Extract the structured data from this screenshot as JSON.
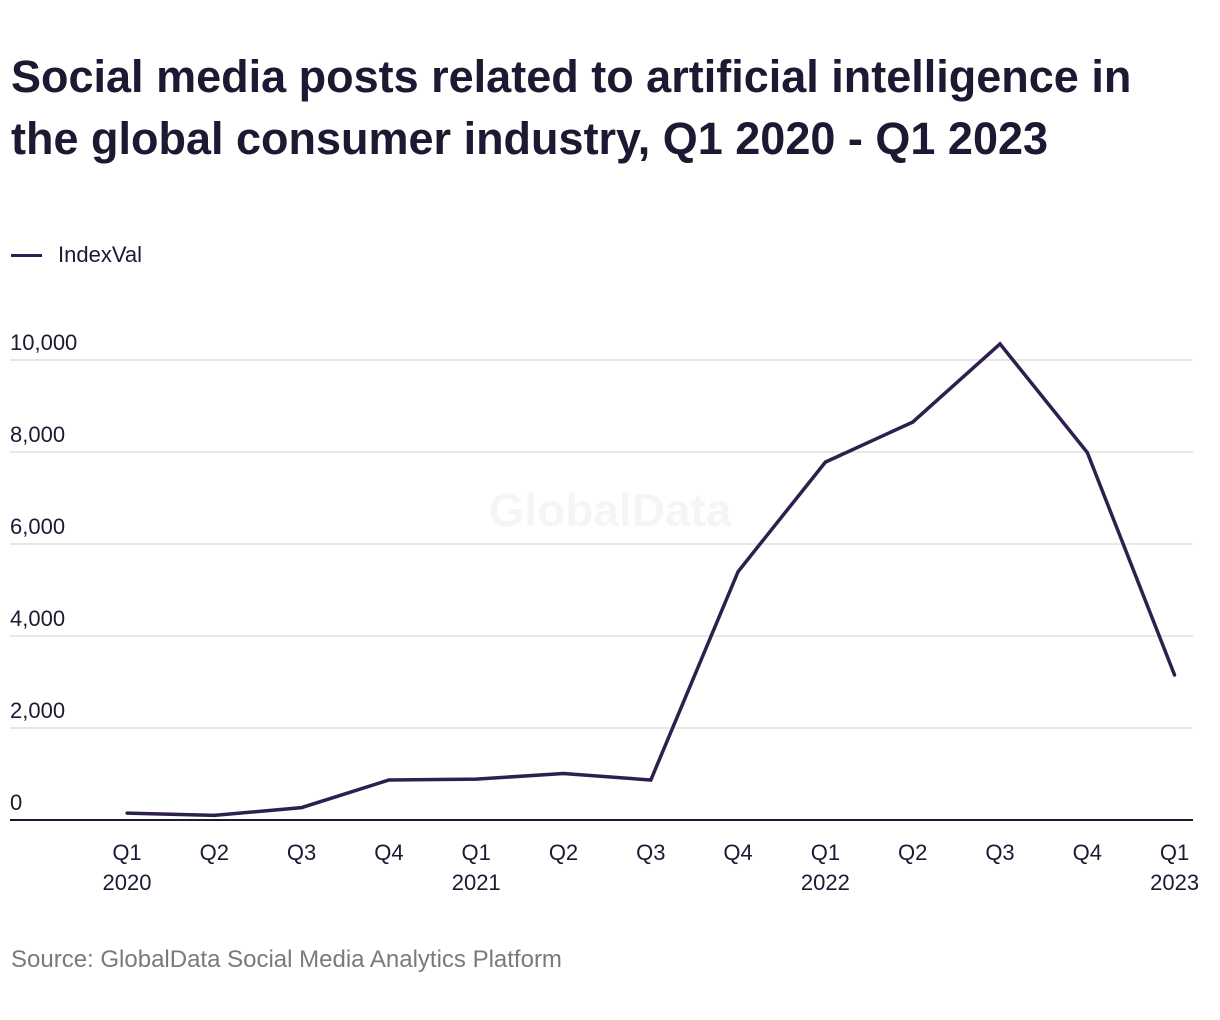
{
  "title": "Social media posts related to artificial intelligence in the global consumer industry, Q1 2020 - Q1 2023",
  "watermark": "GlobalData",
  "source": "Source: GlobalData Social Media Analytics Platform",
  "colors": {
    "line": "#2f1f4f",
    "grid": "#d9d9d9",
    "axis": "#1c1a33",
    "text": "#1c1a33",
    "source": "#7a7a7a"
  },
  "chart_data": {
    "type": "line",
    "title": "Social media posts related to artificial intelligence in the global consumer industry, Q1 2020 - Q1 2023",
    "xlabel": "",
    "ylabel": "",
    "categories": [
      "Q1",
      "Q2",
      "Q3",
      "Q4",
      "Q1",
      "Q2",
      "Q3",
      "Q4",
      "Q1",
      "Q2",
      "Q3",
      "Q4",
      "Q1"
    ],
    "year_labels": [
      "2020",
      "",
      "",
      "",
      "2021",
      "",
      "",
      "",
      "2022",
      "",
      "",
      "",
      "2023"
    ],
    "series": [
      {
        "name": "IndexVal",
        "values": [
          150,
          100,
          270,
          870,
          890,
          1010,
          870,
          5400,
          7780,
          8650,
          10350,
          7990,
          3150
        ]
      }
    ],
    "yticks": [
      0,
      2000,
      4000,
      6000,
      8000,
      10000
    ],
    "ytick_labels": [
      "0",
      "2,000",
      "4,000",
      "6,000",
      "8,000",
      "10,000"
    ],
    "ylim": [
      0,
      10000
    ],
    "grid": "horizontal",
    "legend": "top-left"
  }
}
